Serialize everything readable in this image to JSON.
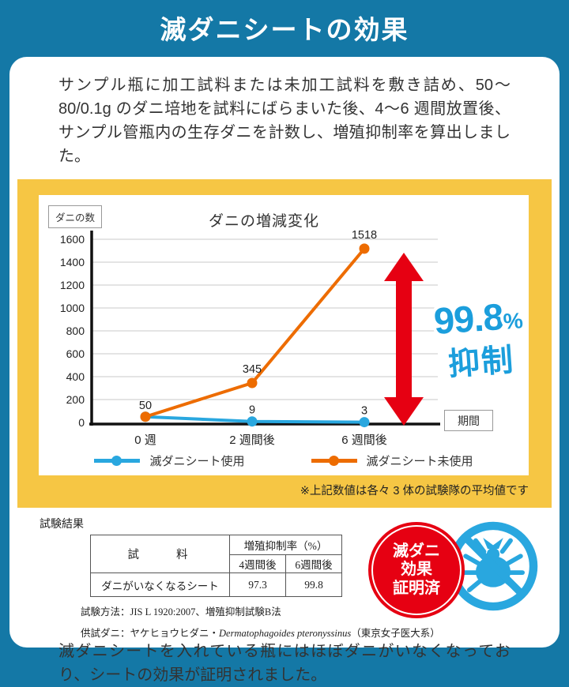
{
  "header": {
    "title": "滅ダニシートの効果"
  },
  "intro": "サンプル瓶に加工試料または未加工試料を敷き詰め、50〜80/0.1g のダニ培地を試料にばらまいた後、4〜6 週間放置後、サンプル管瓶内の生存ダニを計数し、増殖抑制率を算出しました。",
  "chart_data": {
    "type": "line",
    "title": "ダニの増減変化",
    "y_axis_label": "ダニの数",
    "x_axis_label": "期間",
    "categories": [
      "0 週",
      "2 週間後",
      "6 週間後"
    ],
    "series": [
      {
        "name": "滅ダニシート使用",
        "color": "#29A7DF",
        "values": [
          50,
          9,
          3
        ]
      },
      {
        "name": "滅ダニシート未使用",
        "color": "#ED6C00",
        "values": [
          50,
          345,
          1518
        ]
      }
    ],
    "ylim": [
      0,
      1600
    ],
    "y_tick_step": 200,
    "grid": true,
    "legend_position": "bottom"
  },
  "annotation": {
    "value": "99.8",
    "unit": "%",
    "label": "抑制"
  },
  "note": "※上記数値は各々 3 体の試験隊の平均値です",
  "results": {
    "label": "試験結果",
    "table": {
      "sample_header": "試　　料",
      "group_header": "増殖抑制率（%）",
      "sub_headers": [
        "4週間後",
        "6週間後"
      ],
      "row": {
        "sample": "ダニがいなくなるシート",
        "values": [
          "97.3",
          "99.8"
        ]
      }
    },
    "method": "試験方法：JIS L 1920:2007、増殖抑制試験B法",
    "mite_prefix": "供試ダニ：ヤケヒョウヒダニ・",
    "mite_latin": "Dermatophagoides pteronyssinus",
    "mite_suffix": "（東京女子医大系）",
    "stamp": {
      "lines": [
        "滅ダニ",
        "効果",
        "証明済"
      ]
    }
  },
  "outro": "滅ダニシートを入れている瓶にはほぼダニがいなくなっており、シートの効果が証明されました。",
  "colors": {
    "page_bg": "#1478A6",
    "frame_yellow": "#F6C644",
    "arrow_red": "#E60012",
    "stamp_red": "#E60012",
    "badge_blue": "#29A7DF",
    "annotation_blue": "#1B9EDC"
  }
}
